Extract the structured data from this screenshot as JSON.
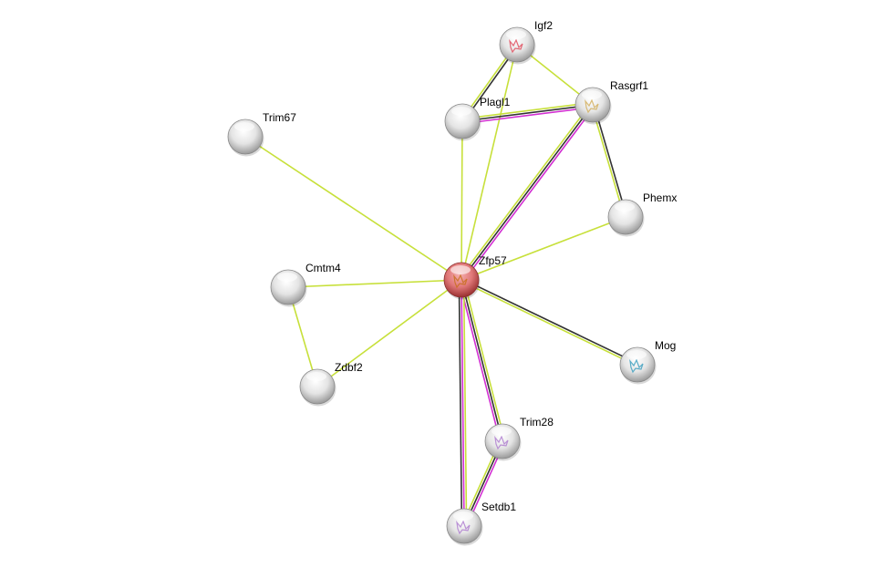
{
  "network": {
    "query_node": "Zfp57",
    "colors": {
      "textmining": "#c7e03a",
      "coexpression": "#333333",
      "experiments": "#d22fd2",
      "query_node": "#d96a6a",
      "node": "#e6e6e6"
    },
    "nodes": [
      {
        "id": "Igf2",
        "label": "Igf2",
        "structure_color": "#e05060"
      },
      {
        "id": "Rasgrf1",
        "label": "Rasgrf1",
        "structure_color": "#d4b060"
      },
      {
        "id": "Plagl1",
        "label": "Plagl1",
        "structure_color": ""
      },
      {
        "id": "Trim67",
        "label": "Trim67",
        "structure_color": ""
      },
      {
        "id": "Phemx",
        "label": "Phemx",
        "structure_color": ""
      },
      {
        "id": "Zfp57",
        "label": "Zfp57",
        "structure_color": "#c87020"
      },
      {
        "id": "Cmtm4",
        "label": "Cmtm4",
        "structure_color": ""
      },
      {
        "id": "Mog",
        "label": "Mog",
        "structure_color": "#40a0c0"
      },
      {
        "id": "Zdbf2",
        "label": "Zdbf2",
        "structure_color": ""
      },
      {
        "id": "Trim28",
        "label": "Trim28",
        "structure_color": "#b080d0"
      },
      {
        "id": "Setdb1",
        "label": "Setdb1",
        "structure_color": "#b080d0"
      }
    ],
    "edges": [
      {
        "from": "Igf2",
        "to": "Plagl1",
        "evidence": [
          "coexpression",
          "textmining"
        ]
      },
      {
        "from": "Igf2",
        "to": "Rasgrf1",
        "evidence": [
          "textmining"
        ]
      },
      {
        "from": "Igf2",
        "to": "Zfp57",
        "evidence": [
          "textmining"
        ]
      },
      {
        "from": "Plagl1",
        "to": "Rasgrf1",
        "evidence": [
          "textmining",
          "coexpression",
          "experiments"
        ]
      },
      {
        "from": "Plagl1",
        "to": "Zfp57",
        "evidence": [
          "textmining"
        ]
      },
      {
        "from": "Rasgrf1",
        "to": "Zfp57",
        "evidence": [
          "experiments",
          "coexpression",
          "textmining"
        ]
      },
      {
        "from": "Rasgrf1",
        "to": "Phemx",
        "evidence": [
          "coexpression",
          "textmining"
        ]
      },
      {
        "from": "Trim67",
        "to": "Zfp57",
        "evidence": [
          "textmining"
        ]
      },
      {
        "from": "Phemx",
        "to": "Zfp57",
        "evidence": [
          "textmining"
        ]
      },
      {
        "from": "Cmtm4",
        "to": "Zfp57",
        "evidence": [
          "textmining"
        ]
      },
      {
        "from": "Cmtm4",
        "to": "Zdbf2",
        "evidence": [
          "textmining"
        ]
      },
      {
        "from": "Zdbf2",
        "to": "Zfp57",
        "evidence": [
          "textmining"
        ]
      },
      {
        "from": "Zfp57",
        "to": "Mog",
        "evidence": [
          "coexpression",
          "textmining"
        ]
      },
      {
        "from": "Zfp57",
        "to": "Trim28",
        "evidence": [
          "textmining",
          "coexpression",
          "experiments"
        ]
      },
      {
        "from": "Zfp57",
        "to": "Setdb1",
        "evidence": [
          "textmining",
          "experiments",
          "coexpression"
        ]
      },
      {
        "from": "Trim28",
        "to": "Setdb1",
        "evidence": [
          "experiments",
          "coexpression",
          "textmining"
        ]
      }
    ]
  }
}
